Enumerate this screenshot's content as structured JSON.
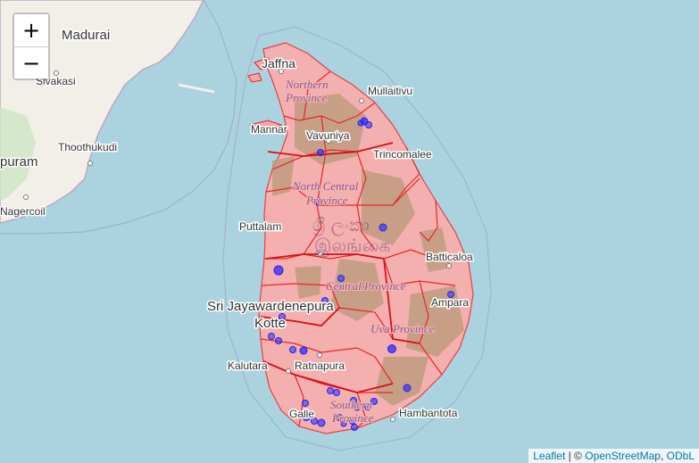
{
  "map": {
    "zoom_in_label": "+",
    "zoom_out_label": "−",
    "attribution": {
      "leaflet": "Leaflet",
      "separator": " | © ",
      "osm": "OpenStreetMap",
      "comma": ", ",
      "odbl": "ODbL"
    },
    "colors": {
      "sea": "#aad3df",
      "land": "#f2efe9",
      "overlay_fill": "#f5a5a5",
      "boundary": "#e8262a",
      "markers": "#1f1fff"
    },
    "cities": {
      "madurai": "Madurai",
      "sivakasi": "Sivakasi",
      "thoothukudi": "Thoothukudi",
      "puram": "puram",
      "nagercoil": "Nagercoil",
      "jaffna": "Jaffna",
      "mullaitivu": "Mullaitivu",
      "mannar": "Mannar",
      "vavuniya": "Vavuniya",
      "trincomalee": "Trincomalee",
      "puttalam": "Puttalam",
      "batticaloa": "Batticaloa",
      "sri_jayawardenepura": "Sri Jayawardenepura",
      "kotte": "Kotte",
      "ampara": "Ampara",
      "kalutara": "Kalutara",
      "ratnapura": "Ratnapura",
      "galle": "Galle",
      "hambantota": "Hambantota"
    },
    "provinces": {
      "northern_1": "Northern",
      "northern_2": "Province",
      "north_central_1": "North Central",
      "north_central_2": "Province",
      "central": "Central Province",
      "uva": "Uva Province",
      "southern_1": "Southern",
      "southern_2": "Province"
    },
    "country_label_1": "ශ්‍රී ලංකා",
    "country_label_2": "இலங்கை"
  }
}
